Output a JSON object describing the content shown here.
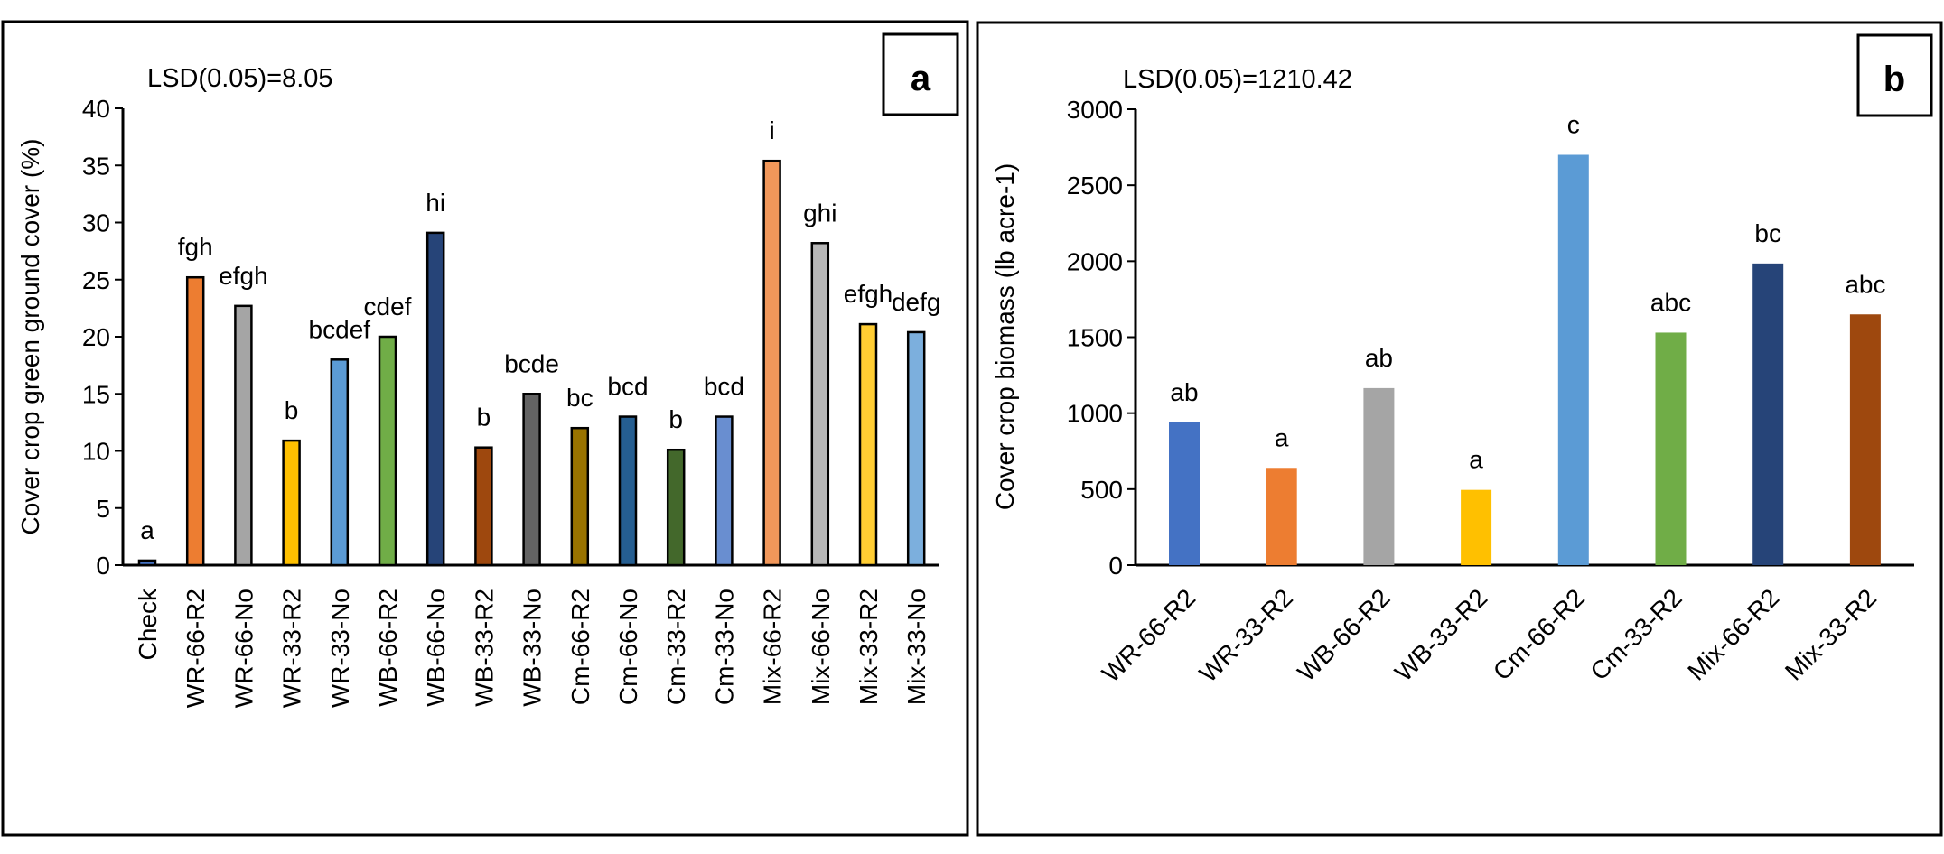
{
  "chart_data": [
    {
      "type": "bar",
      "panel_label": "a",
      "annotation": "LSD(0.05)=8.05",
      "title": "",
      "xlabel": "",
      "ylabel": "Cover crop green ground cover (%)",
      "ylim": [
        0,
        40
      ],
      "yticks": [
        0,
        5,
        10,
        15,
        20,
        25,
        30,
        35,
        40
      ],
      "grid": false,
      "categories": [
        "Check",
        "WR-66-R2",
        "WR-66-No",
        "WR-33-R2",
        "WR-33-No",
        "WB-66-R2",
        "WB-66-No",
        "WB-33-R2",
        "WB-33-No",
        "Cm-66-R2",
        "Cm-66-No",
        "Cm-33-R2",
        "Cm-33-No",
        "Mix-66-R2",
        "Mix-66-No",
        "Mix-33-R2",
        "Mix-33-No"
      ],
      "values": [
        0.4,
        25.2,
        22.7,
        10.9,
        18.0,
        20.0,
        29.1,
        10.3,
        15.0,
        12.0,
        13.0,
        10.1,
        13.0,
        35.4,
        28.2,
        21.1,
        20.4
      ],
      "letters": [
        "a",
        "fgh",
        "efgh",
        "b",
        "bcdef",
        "cdef",
        "hi",
        "b",
        "bcde",
        "bc",
        "bcd",
        "b",
        "bcd",
        "i",
        "ghi",
        "efgh",
        "defg"
      ],
      "colors": [
        "#4472C4",
        "#ED7D31",
        "#A5A5A5",
        "#FFC000",
        "#5B9BD5",
        "#70AD47",
        "#264478",
        "#9E480E",
        "#636363",
        "#997300",
        "#255E91",
        "#43682B",
        "#698ED0",
        "#F1975A",
        "#B7B7B7",
        "#FFCD33",
        "#7CAFDD"
      ]
    },
    {
      "type": "bar",
      "panel_label": "b",
      "annotation": "LSD(0.05)=1210.42",
      "title": "",
      "xlabel": "",
      "ylabel": "Cover crop biomass (lb acre-1)",
      "ylim": [
        0,
        3000
      ],
      "yticks": [
        0,
        500,
        1000,
        1500,
        2000,
        2500,
        3000
      ],
      "grid": false,
      "categories": [
        "WR-66-R2",
        "WR-33-R2",
        "WB-66-R2",
        "WB-33-R2",
        "Cm-66-R2",
        "Cm-33-R2",
        "Mix-66-R2",
        "Mix-33-R2"
      ],
      "values": [
        940,
        640,
        1165,
        495,
        2700,
        1530,
        1985,
        1650
      ],
      "letters": [
        "ab",
        "a",
        "ab",
        "a",
        "c",
        "abc",
        "bc",
        "abc"
      ],
      "colors": [
        "#4472C4",
        "#ED7D31",
        "#A5A5A5",
        "#FFC000",
        "#5B9BD5",
        "#70AD47",
        "#264478",
        "#9E480E"
      ]
    }
  ]
}
